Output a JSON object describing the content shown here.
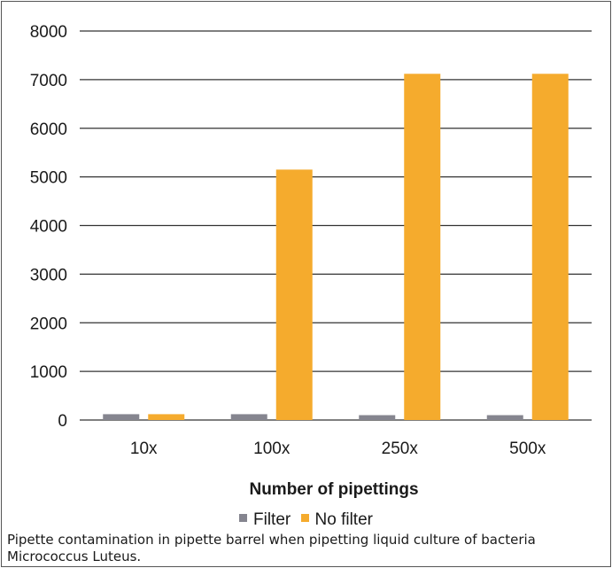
{
  "chart_data": {
    "type": "bar",
    "categories": [
      "10x",
      "100x",
      "250x",
      "500x"
    ],
    "series": [
      {
        "name": "Filter",
        "values": [
          120,
          120,
          100,
          100
        ],
        "color": "#85858f"
      },
      {
        "name": "No filter",
        "values": [
          120,
          5150,
          7120,
          7120
        ],
        "color": "#f5ab2d"
      }
    ],
    "xlabel": "Number of pipettings",
    "ylabel": "",
    "ylim": [
      0,
      8000
    ],
    "yticks": [
      "0",
      "1000",
      "2000",
      "3000",
      "4000",
      "5000",
      "6000",
      "7000",
      "8000"
    ],
    "grid": true,
    "legend_position": "bottom"
  },
  "caption": "Pipette contamination in pipette barrel when pipetting liquid culture of bacteria Micrococcus Luteus."
}
